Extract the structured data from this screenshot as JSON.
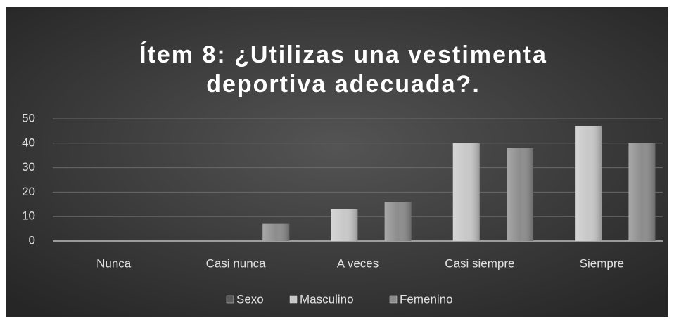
{
  "chart_data": {
    "type": "bar",
    "title_lines": [
      "Ítem 8: ¿Utilizas una vestimenta",
      "deportiva adecuada?."
    ],
    "categories": [
      "Nunca",
      "Casi nunca",
      "A veces",
      "Casi siempre",
      "Siempre"
    ],
    "series": [
      {
        "name": "Sexo",
        "color": "#5a5a5a",
        "values": [
          null,
          null,
          null,
          null,
          null
        ]
      },
      {
        "name": "Masculino",
        "color": "#c8c8c8",
        "values": [
          0,
          0,
          13,
          40,
          47
        ]
      },
      {
        "name": "Femenino",
        "color": "#8c8c8c",
        "values": [
          0,
          7,
          16,
          38,
          40
        ]
      }
    ],
    "ylim": [
      0,
      50
    ],
    "yticks": [
      0,
      10,
      20,
      30,
      40,
      50
    ],
    "grid": true,
    "legend": "bottom"
  }
}
